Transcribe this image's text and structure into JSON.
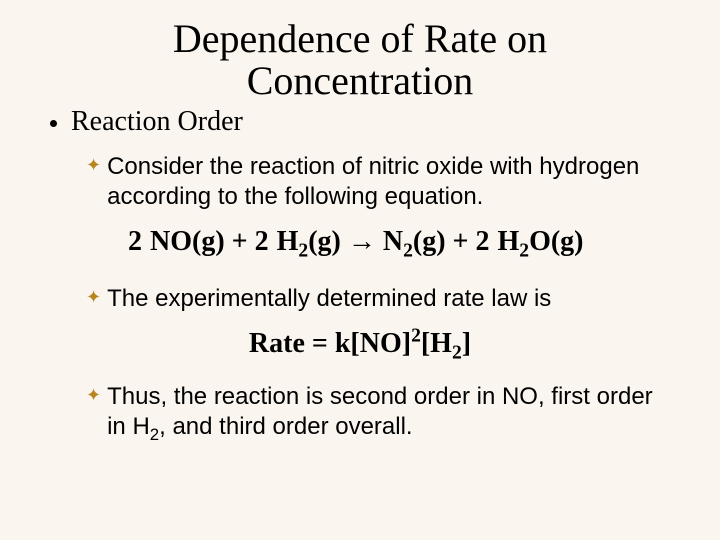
{
  "colors": {
    "background": "#faf6ef",
    "text": "#000000",
    "star": "#b8851f"
  },
  "title_line1": "Dependence of Rate on",
  "title_line2": "Concentration",
  "subheading": "Reaction Order",
  "point1": "Consider the reaction of nitric oxide with hydrogen according to the following equation.",
  "point2": "The experimentally determined rate law is",
  "point3_pre": "Thus, the reaction is second order in NO, first order in H",
  "point3_post": ", and third order overall.",
  "eq1": {
    "display": "2 NO(g) + 2 H2(g) → N2(g) + 2 H2O(g)",
    "species": [
      "NO",
      "H2",
      "N2",
      "H2O"
    ],
    "coefficients": [
      2,
      2,
      1,
      2
    ],
    "phases": [
      "g",
      "g",
      "g",
      "g"
    ]
  },
  "eq2": {
    "display": "Rate = k[NO]^2 [H2]",
    "orders": {
      "NO": 2,
      "H2": 1,
      "overall": 3
    }
  },
  "fonts": {
    "title_family": "Times New Roman",
    "title_size_pt": 40,
    "sub_family": "Times New Roman",
    "sub_size_pt": 28,
    "body_family": "Arial",
    "body_size_pt": 24,
    "eq_family": "Times New Roman",
    "eq_size_pt": 28,
    "eq_weight": "bold"
  }
}
